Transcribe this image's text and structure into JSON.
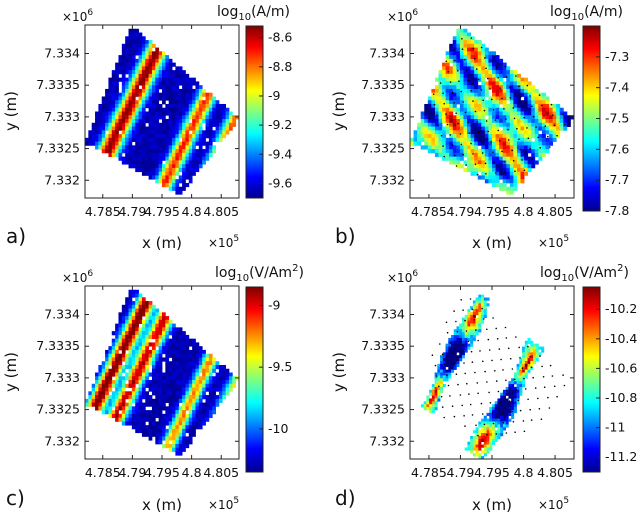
{
  "chart_data": [
    {
      "type": "heatmap",
      "panel_label": "a)",
      "xlabel": "x (m)",
      "ylabel": "y (m)",
      "x_multiplier": "×10",
      "x_exponent": "5",
      "y_multiplier": "×10",
      "y_exponent": "6",
      "xlim": [
        4.782,
        4.808
      ],
      "ylim": [
        7.33172,
        7.33445
      ],
      "x_ticks": [
        4.785,
        4.79,
        4.795,
        4.8,
        4.805
      ],
      "x_tick_labels": [
        "4.785",
        "4.79",
        "4.795",
        "4.8",
        "4.805"
      ],
      "y_ticks": [
        7.332,
        7.3325,
        7.333,
        7.3335,
        7.334
      ],
      "y_tick_labels": [
        "7.332",
        "7.3325",
        "7.333",
        "7.3335",
        "7.334"
      ],
      "colorbar_title_base": "log",
      "colorbar_title_sub": "10",
      "colorbar_title_unit": "(A/m)",
      "colorbar_title_sup": "",
      "clim": [
        -9.7,
        -8.52
      ],
      "colorbar_ticks": [
        -8.6,
        -8.8,
        -9,
        -9.2,
        -9.4,
        -9.6
      ],
      "colorbar_tick_labels": [
        "-8.6",
        "-8.8",
        "-9",
        "-9.2",
        "-9.4",
        "-9.6"
      ],
      "has_data_points": false
    },
    {
      "type": "heatmap",
      "panel_label": "b)",
      "xlabel": "x (m)",
      "ylabel": "y (m)",
      "x_multiplier": "×10",
      "x_exponent": "5",
      "y_multiplier": "×10",
      "y_exponent": "6",
      "xlim": [
        4.782,
        4.808
      ],
      "ylim": [
        7.33172,
        7.33445
      ],
      "x_ticks": [
        4.785,
        4.79,
        4.795,
        4.8,
        4.805
      ],
      "x_tick_labels": [
        "4.785",
        "4.79",
        "4.795",
        "4.8",
        "4.805"
      ],
      "y_ticks": [
        7.332,
        7.3325,
        7.333,
        7.3335,
        7.334
      ],
      "y_tick_labels": [
        "7.332",
        "7.3325",
        "7.333",
        "7.3335",
        "7.334"
      ],
      "colorbar_title_base": "log",
      "colorbar_title_sub": "10",
      "colorbar_title_unit": "(A/m)",
      "colorbar_title_sup": "",
      "clim": [
        -7.8,
        -7.2
      ],
      "colorbar_ticks": [
        -7.3,
        -7.4,
        -7.5,
        -7.6,
        -7.7,
        -7.8
      ],
      "colorbar_tick_labels": [
        "-7.3",
        "-7.4",
        "-7.5",
        "-7.6",
        "-7.7",
        "-7.8"
      ],
      "has_data_points": true
    },
    {
      "type": "heatmap",
      "panel_label": "c)",
      "xlabel": "x (m)",
      "ylabel": "y (m)",
      "x_multiplier": "×10",
      "x_exponent": "5",
      "y_multiplier": "×10",
      "y_exponent": "6",
      "xlim": [
        4.782,
        4.808
      ],
      "ylim": [
        7.33172,
        7.33445
      ],
      "x_ticks": [
        4.785,
        4.79,
        4.795,
        4.8,
        4.805
      ],
      "x_tick_labels": [
        "4.785",
        "4.79",
        "4.795",
        "4.8",
        "4.805"
      ],
      "y_ticks": [
        7.332,
        7.3325,
        7.333,
        7.3335,
        7.334
      ],
      "y_tick_labels": [
        "7.332",
        "7.3325",
        "7.333",
        "7.3335",
        "7.334"
      ],
      "colorbar_title_base": "log",
      "colorbar_title_sub": "10",
      "colorbar_title_unit": "(V/Am",
      "colorbar_title_sup": "2",
      "clim": [
        -10.35,
        -8.85
      ],
      "colorbar_ticks": [
        -9,
        -9.5,
        -10
      ],
      "colorbar_tick_labels": [
        "-9",
        "-9.5",
        "-10"
      ],
      "has_data_points": false
    },
    {
      "type": "heatmap",
      "panel_label": "d)",
      "xlabel": "x (m)",
      "ylabel": "y (m)",
      "x_multiplier": "×10",
      "x_exponent": "5",
      "y_multiplier": "×10",
      "y_exponent": "6",
      "xlim": [
        4.782,
        4.808
      ],
      "ylim": [
        7.33172,
        7.33445
      ],
      "x_ticks": [
        4.785,
        4.79,
        4.795,
        4.8,
        4.805
      ],
      "x_tick_labels": [
        "4.785",
        "4.79",
        "4.795",
        "4.8",
        "4.805"
      ],
      "y_ticks": [
        7.332,
        7.3325,
        7.333,
        7.3335,
        7.334
      ],
      "y_tick_labels": [
        "7.332",
        "7.3325",
        "7.333",
        "7.3335",
        "7.334"
      ],
      "colorbar_title_base": "log",
      "colorbar_title_sub": "10",
      "colorbar_title_unit": "(V/Am",
      "colorbar_title_sup": "2",
      "clim": [
        -11.3,
        -10.05
      ],
      "colorbar_ticks": [
        -10.2,
        -10.4,
        -10.6,
        -10.8,
        -11,
        -11.2
      ],
      "colorbar_tick_labels": [
        "-10.2",
        "-10.4",
        "-10.6",
        "-10.8",
        "-11",
        "-11.2"
      ],
      "has_data_points": true
    }
  ]
}
